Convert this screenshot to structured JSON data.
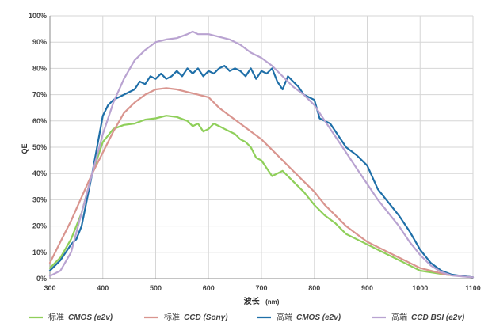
{
  "chart_data": {
    "type": "line",
    "title": "",
    "xlabel": "波长",
    "xlabel_unit": "(nm)",
    "ylabel": "QE",
    "xlim": [
      300,
      1100
    ],
    "ylim": [
      0,
      100
    ],
    "grid": true,
    "legend_position": "bottom",
    "x_ticks": [
      300,
      400,
      500,
      600,
      700,
      800,
      900,
      1000,
      1100
    ],
    "y_ticks": [
      "0%",
      "10%",
      "20%",
      "30%",
      "40%",
      "50%",
      "60%",
      "70%",
      "80%",
      "90%",
      "100%"
    ],
    "colors": {
      "standard_cmos": "#8fcf5a",
      "standard_ccd": "#d9958f",
      "high_cmos": "#1f6fa8",
      "high_ccd_bsi": "#b9a3d1",
      "grid": "#d6d6d6",
      "axis": "#888888"
    },
    "series": [
      {
        "key": "standard_cmos",
        "name": "标准 CMOS (e2v)",
        "name_cn": "标准",
        "name_latin": "CMOS (e2v)",
        "x": [
          300,
          320,
          340,
          360,
          380,
          400,
          420,
          440,
          460,
          480,
          500,
          520,
          540,
          560,
          570,
          580,
          590,
          600,
          610,
          620,
          630,
          640,
          650,
          660,
          670,
          680,
          690,
          700,
          710,
          720,
          740,
          760,
          780,
          800,
          820,
          840,
          860,
          880,
          900,
          920,
          950,
          1000,
          1050,
          1100
        ],
        "y": [
          4,
          8,
          15,
          25,
          40,
          52,
          57,
          58.5,
          59,
          60.5,
          61,
          62,
          61.5,
          60,
          58,
          59,
          56,
          57,
          59,
          58,
          57,
          56,
          55,
          53,
          52,
          50,
          46,
          45,
          42,
          39,
          41,
          37,
          33,
          28,
          24,
          21,
          17,
          15,
          13,
          11,
          8,
          3,
          1.5,
          0.5
        ]
      },
      {
        "key": "standard_ccd",
        "name": "标准 CCD (Sony)",
        "name_cn": "标准",
        "name_latin": "CCD (Sony)",
        "x": [
          300,
          320,
          340,
          360,
          380,
          400,
          420,
          440,
          460,
          480,
          500,
          520,
          540,
          560,
          580,
          600,
          620,
          640,
          660,
          680,
          700,
          720,
          740,
          760,
          780,
          800,
          820,
          840,
          860,
          880,
          900,
          920,
          950,
          1000,
          1050,
          1100
        ],
        "y": [
          6,
          14,
          22,
          31,
          40,
          48,
          56,
          63,
          67,
          70,
          72,
          72.5,
          72,
          71,
          70,
          69,
          65,
          62,
          59,
          56,
          53,
          49,
          45,
          41,
          37,
          33,
          28,
          24,
          20,
          17,
          14,
          12,
          9,
          4,
          1.5,
          0.5
        ]
      },
      {
        "key": "high_cmos",
        "name": "高端 CMOS (e2v)",
        "name_cn": "高端",
        "name_latin": "CMOS (e2v)",
        "x": [
          300,
          320,
          340,
          350,
          360,
          380,
          400,
          410,
          420,
          440,
          460,
          470,
          480,
          490,
          500,
          510,
          520,
          530,
          540,
          550,
          560,
          570,
          580,
          590,
          600,
          610,
          620,
          630,
          640,
          650,
          660,
          670,
          680,
          690,
          700,
          710,
          720,
          730,
          740,
          750,
          760,
          770,
          780,
          800,
          810,
          820,
          830,
          840,
          860,
          880,
          900,
          920,
          940,
          960,
          980,
          1000,
          1020,
          1040,
          1060,
          1080,
          1100
        ],
        "y": [
          3,
          7,
          13,
          15,
          20,
          40,
          62,
          66,
          68,
          70,
          72,
          75,
          74,
          77,
          76,
          78,
          76,
          77,
          79,
          77,
          80,
          78,
          80,
          77,
          79,
          78,
          80,
          81,
          79,
          80,
          79,
          77,
          80,
          76,
          79,
          78,
          80,
          75,
          72,
          77,
          75,
          73,
          70,
          68,
          61,
          60,
          59,
          56,
          50,
          47,
          43,
          34,
          29,
          24,
          18,
          11,
          6,
          3,
          1.5,
          1,
          0.5
        ]
      },
      {
        "key": "high_ccd_bsi",
        "name": "高端 CCD BSI (e2v)",
        "name_cn": "高端",
        "name_latin": "CCD BSI (e2v)",
        "x": [
          300,
          320,
          340,
          360,
          380,
          400,
          420,
          440,
          460,
          480,
          500,
          520,
          540,
          560,
          570,
          580,
          600,
          620,
          640,
          660,
          680,
          700,
          720,
          740,
          760,
          780,
          800,
          820,
          840,
          860,
          880,
          900,
          920,
          940,
          960,
          980,
          1000,
          1020,
          1040,
          1060,
          1080,
          1100
        ],
        "y": [
          1,
          3,
          10,
          25,
          40,
          55,
          67,
          76,
          83,
          87,
          90,
          91,
          91.5,
          93,
          94,
          93,
          93,
          92,
          91,
          89,
          86,
          84,
          81,
          77,
          73,
          70,
          66,
          60,
          54,
          48,
          42,
          36,
          30,
          25,
          20,
          14,
          9,
          5,
          2.5,
          1.2,
          0.8,
          0.5
        ]
      }
    ]
  }
}
